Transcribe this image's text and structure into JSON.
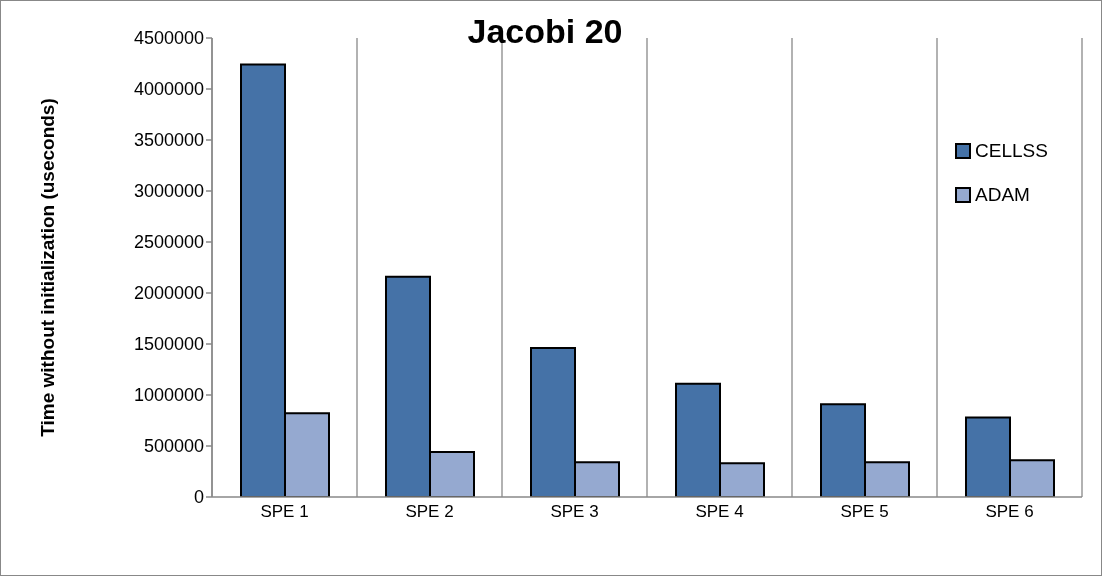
{
  "chart_data": {
    "type": "bar",
    "title": "Jacobi 20",
    "ylabel": "Time without initialization (useconds)",
    "categories": [
      "SPE 1",
      "SPE 2",
      "SPE 3",
      "SPE 4",
      "SPE 5",
      "SPE 6"
    ],
    "series": [
      {
        "name": "CELLSS",
        "color": "#4572a7",
        "values": [
          4240000,
          2160000,
          1460000,
          1110000,
          910000,
          780000
        ]
      },
      {
        "name": "ADAM",
        "color": "#95a9d0",
        "values": [
          820000,
          440000,
          340000,
          330000,
          340000,
          360000
        ]
      }
    ],
    "ylim": [
      0,
      4500000
    ],
    "yticks": [
      0,
      500000,
      1000000,
      1500000,
      2000000,
      2500000,
      3000000,
      3500000,
      4000000,
      4500000
    ],
    "grid": "x",
    "legend": "right"
  }
}
